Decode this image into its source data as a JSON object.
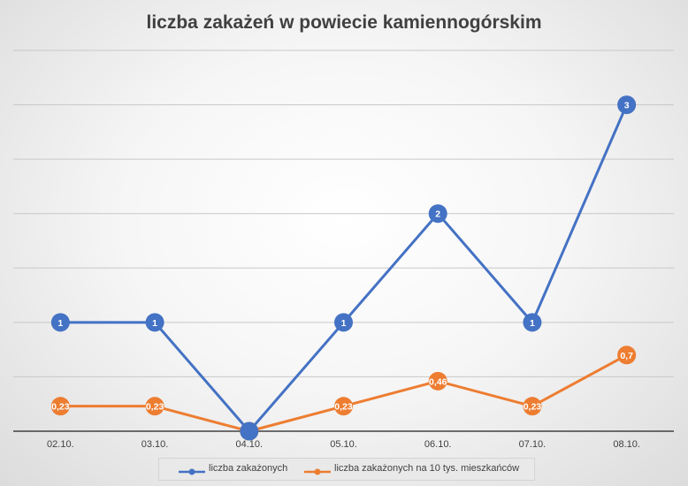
{
  "chart_data": {
    "type": "line",
    "title": "liczba zakażeń w powiecie kamiennogórskim",
    "categories": [
      "02.10.",
      "03.10.",
      "04.10.",
      "05.10.",
      "06.10.",
      "07.10.",
      "08.10."
    ],
    "series": [
      {
        "name": "liczba zakażonych",
        "color": "#4472c4",
        "values": [
          1,
          1,
          0,
          1,
          2,
          1,
          3
        ],
        "labels": [
          "1",
          "1",
          "",
          "1",
          "2",
          "1",
          "3"
        ]
      },
      {
        "name": "liczba zakażonych na 10 tys. mieszkańców",
        "color": "#ed7d31",
        "values": [
          0.23,
          0.23,
          0,
          0.23,
          0.46,
          0.23,
          0.7
        ],
        "labels": [
          "0,23",
          "0,23",
          "0",
          "0,23",
          "0,46",
          "0,23",
          "0,7"
        ]
      }
    ],
    "ylim": [
      0,
      3.5
    ],
    "gridlines": true,
    "legend_position": "bottom"
  }
}
